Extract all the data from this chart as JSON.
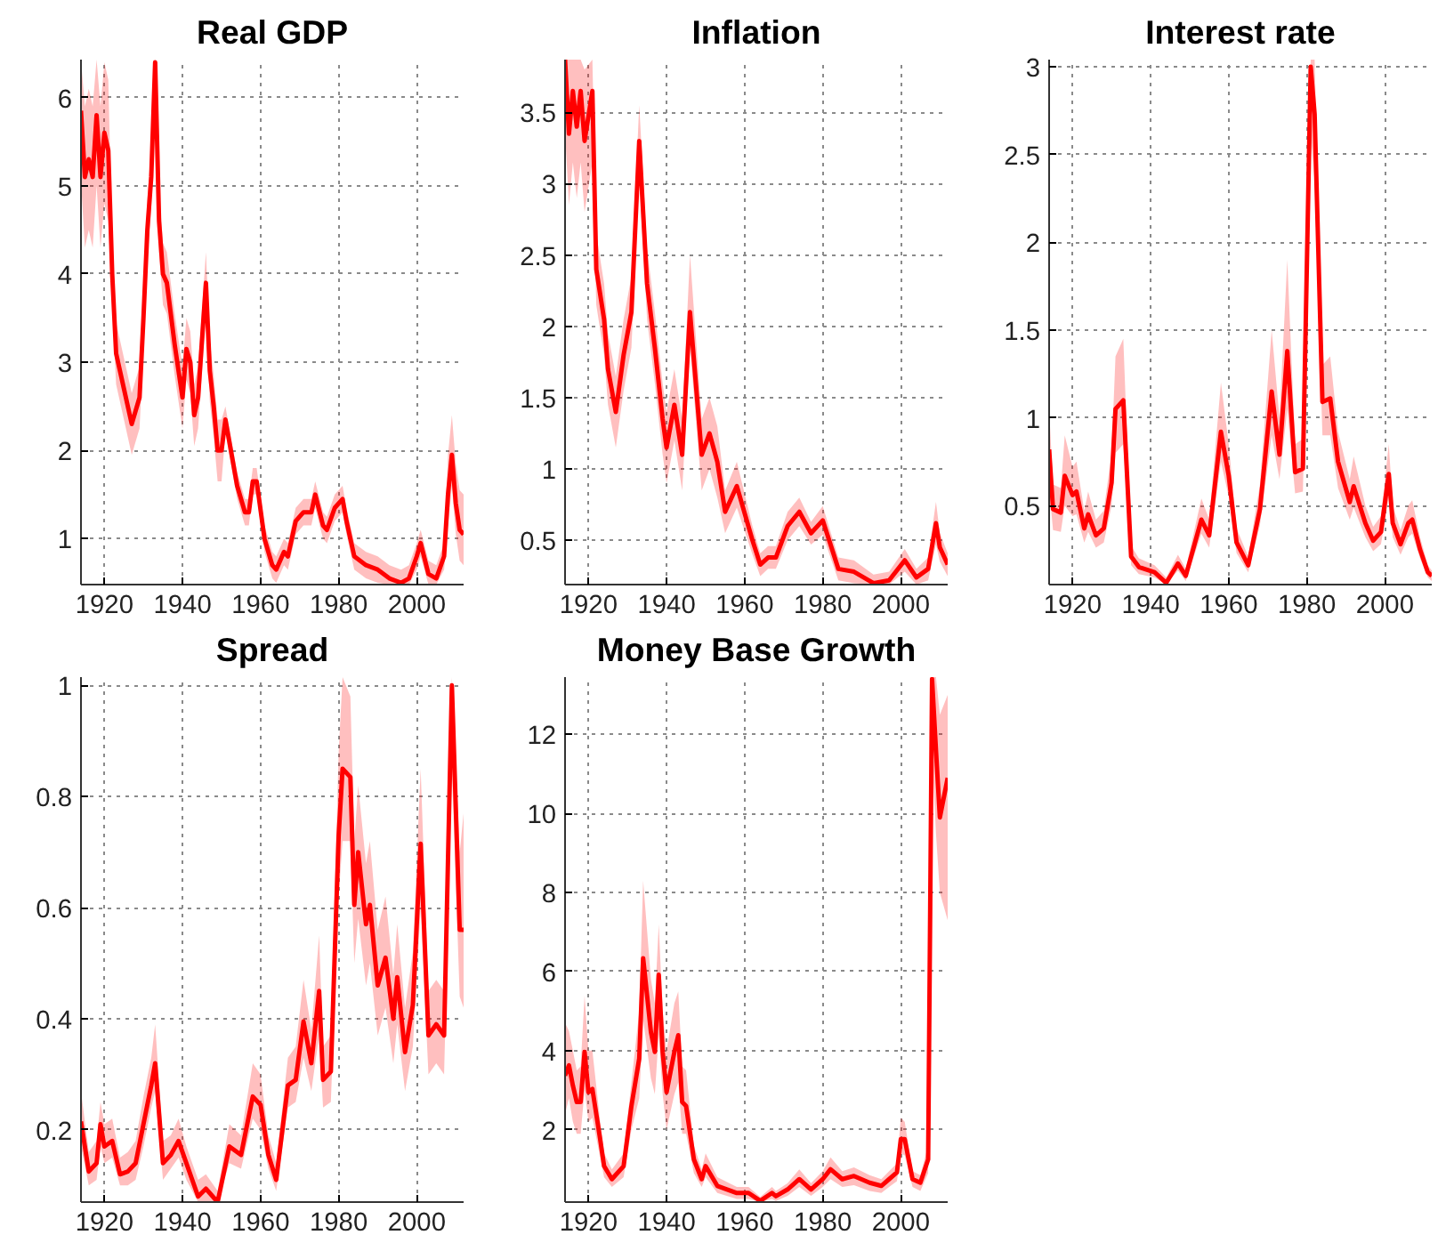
{
  "chart_data": [
    {
      "type": "line",
      "title": "Real GDP",
      "xlim": [
        1914,
        2012
      ],
      "xticks": [
        1920,
        1940,
        1960,
        1980,
        2000
      ],
      "ylim": [
        0.48,
        6.43
      ],
      "yticks": [
        1,
        2,
        3,
        4,
        5,
        6
      ],
      "grid": true,
      "x": [
        1914,
        1915,
        1916,
        1917,
        1918,
        1919,
        1920,
        1921,
        1922,
        1923,
        1925,
        1927,
        1929,
        1930,
        1931,
        1932,
        1933,
        1934,
        1935,
        1936,
        1938,
        1939,
        1940,
        1941,
        1942,
        1943,
        1944,
        1946,
        1947,
        1948,
        1949,
        1950,
        1951,
        1952,
        1954,
        1956,
        1957,
        1958,
        1959,
        1961,
        1963,
        1964,
        1966,
        1967,
        1969,
        1971,
        1973,
        1974,
        1976,
        1977,
        1979,
        1981,
        1982,
        1984,
        1987,
        1990,
        1993,
        1996,
        1998,
        2000,
        2001,
        2003,
        2005,
        2007,
        2008,
        2009,
        2010,
        2011,
        2012
      ],
      "series": [
        {
          "color": "#ff0000",
          "values": [
            5.85,
            5.1,
            5.3,
            5.1,
            5.8,
            5.1,
            5.6,
            5.4,
            4.0,
            3.1,
            2.7,
            2.3,
            2.6,
            3.5,
            4.5,
            5.1,
            6.4,
            4.6,
            4.0,
            3.9,
            3.2,
            2.9,
            2.6,
            3.15,
            3.0,
            2.4,
            2.6,
            3.9,
            2.9,
            2.5,
            2.0,
            2.0,
            2.35,
            2.1,
            1.6,
            1.3,
            1.3,
            1.65,
            1.65,
            1.0,
            0.7,
            0.65,
            0.85,
            0.8,
            1.2,
            1.3,
            1.3,
            1.5,
            1.15,
            1.1,
            1.35,
            1.45,
            1.2,
            0.8,
            0.7,
            0.65,
            0.55,
            0.5,
            0.55,
            0.8,
            0.95,
            0.6,
            0.55,
            0.8,
            1.5,
            1.95,
            1.4,
            1.1,
            1.05
          ],
          "lower": [
            5.05,
            4.3,
            4.5,
            4.3,
            5.0,
            4.3,
            4.8,
            4.6,
            3.65,
            2.75,
            2.35,
            1.95,
            2.25,
            3.15,
            4.15,
            4.75,
            6.05,
            4.25,
            3.65,
            3.55,
            2.85,
            2.55,
            2.25,
            2.8,
            2.65,
            2.05,
            2.25,
            3.55,
            2.55,
            2.15,
            1.65,
            1.65,
            2.2,
            1.95,
            1.45,
            1.15,
            1.15,
            1.5,
            1.5,
            0.85,
            0.55,
            0.5,
            0.7,
            0.65,
            1.05,
            1.15,
            1.15,
            1.35,
            1.0,
            0.95,
            1.2,
            1.3,
            1.05,
            0.65,
            0.55,
            0.5,
            0.48,
            0.48,
            0.48,
            0.65,
            0.8,
            0.48,
            0.48,
            0.65,
            1.15,
            1.6,
            1.05,
            0.75,
            0.7
          ],
          "upper": [
            6.43,
            5.9,
            6.1,
            5.9,
            6.43,
            5.9,
            6.4,
            6.2,
            4.35,
            3.45,
            3.05,
            2.65,
            2.95,
            3.85,
            4.85,
            5.45,
            6.43,
            4.95,
            4.35,
            4.25,
            3.55,
            3.25,
            2.95,
            3.5,
            3.35,
            2.75,
            2.95,
            4.25,
            3.25,
            2.85,
            2.35,
            2.35,
            2.5,
            2.25,
            1.75,
            1.45,
            1.45,
            1.8,
            1.8,
            1.15,
            0.85,
            0.8,
            1.0,
            0.95,
            1.35,
            1.45,
            1.45,
            1.65,
            1.3,
            1.25,
            1.5,
            1.6,
            1.35,
            0.95,
            0.85,
            0.8,
            0.7,
            0.65,
            0.7,
            0.95,
            1.1,
            0.75,
            0.7,
            0.95,
            1.95,
            2.4,
            1.85,
            1.55,
            1.5
          ]
        }
      ]
    },
    {
      "type": "line",
      "title": "Inflation",
      "xlim": [
        1914,
        2012
      ],
      "xticks": [
        1920,
        1940,
        1960,
        1980,
        2000
      ],
      "ylim": [
        0.19,
        3.87
      ],
      "yticks": [
        0.5,
        1,
        1.5,
        2,
        2.5,
        3,
        3.5
      ],
      "grid": true,
      "x": [
        1914,
        1915,
        1916,
        1917,
        1918,
        1919,
        1921,
        1922,
        1924,
        1925,
        1927,
        1929,
        1931,
        1932,
        1933,
        1935,
        1937,
        1939,
        1940,
        1942,
        1944,
        1946,
        1949,
        1951,
        1953,
        1955,
        1958,
        1962,
        1964,
        1966,
        1968,
        1971,
        1974,
        1977,
        1980,
        1984,
        1988,
        1993,
        1997,
        2001,
        2004,
        2007,
        2009,
        2010,
        2012
      ],
      "series": [
        {
          "color": "#ff0000",
          "values": [
            3.87,
            3.35,
            3.65,
            3.4,
            3.65,
            3.3,
            3.65,
            2.4,
            2.05,
            1.7,
            1.4,
            1.8,
            2.1,
            2.7,
            3.3,
            2.3,
            1.85,
            1.35,
            1.15,
            1.45,
            1.1,
            2.1,
            1.1,
            1.25,
            1.05,
            0.7,
            0.88,
            0.5,
            0.33,
            0.38,
            0.38,
            0.6,
            0.7,
            0.55,
            0.64,
            0.3,
            0.28,
            0.2,
            0.22,
            0.36,
            0.24,
            0.3,
            0.62,
            0.45,
            0.33
          ],
          "lower": [
            3.37,
            2.85,
            3.15,
            2.9,
            3.15,
            2.8,
            3.15,
            2.15,
            1.8,
            1.45,
            1.15,
            1.55,
            1.85,
            2.45,
            3.05,
            2.05,
            1.6,
            1.1,
            0.9,
            1.2,
            0.85,
            1.85,
            0.85,
            1.0,
            0.8,
            0.55,
            0.73,
            0.4,
            0.25,
            0.3,
            0.3,
            0.5,
            0.6,
            0.47,
            0.54,
            0.22,
            0.2,
            0.19,
            0.19,
            0.28,
            0.19,
            0.22,
            0.47,
            0.35,
            0.25
          ],
          "upper": [
            3.87,
            3.87,
            3.87,
            3.87,
            3.87,
            3.8,
            3.87,
            2.65,
            2.3,
            1.95,
            1.65,
            2.05,
            2.35,
            2.95,
            3.55,
            2.55,
            2.1,
            1.6,
            1.4,
            1.7,
            1.35,
            2.5,
            1.35,
            1.5,
            1.3,
            0.85,
            1.05,
            0.6,
            0.41,
            0.46,
            0.46,
            0.7,
            0.8,
            0.63,
            0.74,
            0.38,
            0.36,
            0.26,
            0.28,
            0.44,
            0.3,
            0.38,
            0.77,
            0.55,
            0.41
          ]
        }
      ]
    },
    {
      "type": "line",
      "title": "Interest rate",
      "xlim": [
        1914,
        2012
      ],
      "xticks": [
        1920,
        1940,
        1960,
        1980,
        2000
      ],
      "ylim": [
        0.05,
        3.04
      ],
      "yticks": [
        0.5,
        1,
        1.5,
        2,
        2.5,
        3
      ],
      "grid": true,
      "x": [
        1914,
        1915,
        1917,
        1918,
        1920,
        1921,
        1923,
        1924,
        1926,
        1928,
        1930,
        1931,
        1933,
        1935,
        1937,
        1941,
        1944,
        1947,
        1949,
        1953,
        1955,
        1958,
        1960,
        1962,
        1965,
        1968,
        1971,
        1973,
        1975,
        1977,
        1979,
        1981,
        1982,
        1984,
        1986,
        1988,
        1991,
        1992,
        1995,
        1997,
        1999,
        2001,
        2002,
        2004,
        2006,
        2007,
        2009,
        2011,
        2012
      ],
      "series": [
        {
          "color": "#ff0000",
          "values": [
            0.82,
            0.48,
            0.46,
            0.67,
            0.56,
            0.58,
            0.37,
            0.45,
            0.33,
            0.37,
            0.63,
            1.05,
            1.1,
            0.21,
            0.15,
            0.12,
            0.06,
            0.17,
            0.1,
            0.42,
            0.33,
            0.92,
            0.67,
            0.29,
            0.16,
            0.48,
            1.15,
            0.79,
            1.38,
            0.69,
            0.71,
            3.0,
            2.73,
            1.09,
            1.11,
            0.75,
            0.52,
            0.61,
            0.4,
            0.3,
            0.35,
            0.68,
            0.4,
            0.28,
            0.4,
            0.42,
            0.25,
            0.12,
            0.1
          ],
          "lower": [
            0.6,
            0.36,
            0.35,
            0.5,
            0.44,
            0.45,
            0.29,
            0.35,
            0.26,
            0.29,
            0.5,
            0.8,
            0.85,
            0.16,
            0.11,
            0.09,
            0.05,
            0.13,
            0.07,
            0.34,
            0.26,
            0.75,
            0.55,
            0.23,
            0.12,
            0.39,
            0.9,
            0.65,
            1.05,
            0.57,
            0.58,
            2.6,
            2.35,
            0.9,
            0.9,
            0.6,
            0.42,
            0.49,
            0.32,
            0.24,
            0.28,
            0.55,
            0.32,
            0.22,
            0.32,
            0.34,
            0.2,
            0.09,
            0.07
          ],
          "upper": [
            1.05,
            0.62,
            0.6,
            0.9,
            0.72,
            0.75,
            0.47,
            0.58,
            0.42,
            0.47,
            0.8,
            1.35,
            1.45,
            0.27,
            0.2,
            0.16,
            0.09,
            0.22,
            0.14,
            0.54,
            0.42,
            1.2,
            0.85,
            0.37,
            0.21,
            0.62,
            1.5,
            1.0,
            1.9,
            0.85,
            0.88,
            3.04,
            3.04,
            1.3,
            1.35,
            0.92,
            0.65,
            0.78,
            0.5,
            0.38,
            0.44,
            0.85,
            0.5,
            0.36,
            0.5,
            0.53,
            0.32,
            0.16,
            0.13
          ]
        }
      ]
    },
    {
      "type": "line",
      "title": "Spread",
      "xlim": [
        1914,
        2012
      ],
      "xticks": [
        1920,
        1940,
        1960,
        1980,
        2000
      ],
      "ylim": [
        0.07,
        1.015
      ],
      "yticks": [
        0.2,
        0.4,
        0.6,
        0.8,
        1
      ],
      "grid": true,
      "x": [
        1914,
        1916,
        1918,
        1919,
        1920,
        1922,
        1924,
        1926,
        1928,
        1930,
        1932,
        1933,
        1935,
        1937,
        1939,
        1941,
        1944,
        1946,
        1949,
        1952,
        1955,
        1958,
        1960,
        1962,
        1964,
        1967,
        1969,
        1971,
        1973,
        1975,
        1976,
        1978,
        1980,
        1981,
        1983,
        1984,
        1985,
        1987,
        1988,
        1990,
        1992,
        1994,
        1995,
        1997,
        1999,
        2001,
        2003,
        2005,
        2007,
        2009,
        2011,
        2012
      ],
      "series": [
        {
          "color": "#ff0000",
          "values": [
            0.215,
            0.125,
            0.14,
            0.21,
            0.17,
            0.18,
            0.12,
            0.125,
            0.14,
            0.21,
            0.28,
            0.32,
            0.14,
            0.155,
            0.18,
            0.14,
            0.08,
            0.094,
            0.07,
            0.17,
            0.155,
            0.26,
            0.245,
            0.155,
            0.11,
            0.28,
            0.29,
            0.395,
            0.32,
            0.45,
            0.29,
            0.305,
            0.73,
            0.85,
            0.835,
            0.605,
            0.7,
            0.57,
            0.605,
            0.46,
            0.51,
            0.4,
            0.475,
            0.34,
            0.425,
            0.715,
            0.37,
            0.39,
            0.37,
            1.0,
            0.56,
            0.56
          ],
          "lower": [
            0.17,
            0.1,
            0.11,
            0.17,
            0.14,
            0.15,
            0.1,
            0.1,
            0.11,
            0.17,
            0.24,
            0.27,
            0.11,
            0.13,
            0.15,
            0.11,
            0.07,
            0.07,
            0.07,
            0.14,
            0.13,
            0.22,
            0.2,
            0.13,
            0.09,
            0.24,
            0.25,
            0.33,
            0.27,
            0.37,
            0.24,
            0.25,
            0.62,
            0.72,
            0.72,
            0.5,
            0.58,
            0.46,
            0.5,
            0.37,
            0.42,
            0.32,
            0.39,
            0.27,
            0.35,
            0.6,
            0.3,
            0.32,
            0.3,
            0.85,
            0.44,
            0.42
          ],
          "upper": [
            0.27,
            0.16,
            0.18,
            0.25,
            0.21,
            0.22,
            0.15,
            0.16,
            0.18,
            0.26,
            0.33,
            0.39,
            0.18,
            0.19,
            0.22,
            0.17,
            0.11,
            0.12,
            0.09,
            0.21,
            0.19,
            0.32,
            0.3,
            0.19,
            0.14,
            0.33,
            0.35,
            0.47,
            0.38,
            0.55,
            0.35,
            0.37,
            0.88,
            1.015,
            0.98,
            0.72,
            0.82,
            0.68,
            0.72,
            0.56,
            0.62,
            0.48,
            0.57,
            0.42,
            0.52,
            0.85,
            0.45,
            0.47,
            0.45,
            1.015,
            0.7,
            0.77
          ]
        }
      ]
    },
    {
      "type": "line",
      "title": "Money Base Growth",
      "xlim": [
        1914,
        2012
      ],
      "xticks": [
        1920,
        1940,
        1960,
        1980,
        2000
      ],
      "ylim": [
        0.17,
        13.45
      ],
      "yticks": [
        2,
        4,
        6,
        8,
        10,
        12
      ],
      "grid": true,
      "x": [
        1914,
        1915,
        1916,
        1917,
        1918,
        1919,
        1920,
        1921,
        1923,
        1924,
        1926,
        1929,
        1931,
        1933,
        1934,
        1936,
        1937,
        1938,
        1939,
        1940,
        1942,
        1943,
        1944,
        1945,
        1947,
        1949,
        1950,
        1953,
        1958,
        1961,
        1964,
        1967,
        1968,
        1971,
        1974,
        1977,
        1980,
        1982,
        1985,
        1988,
        1992,
        1995,
        1997,
        1999,
        2000,
        2001,
        2003,
        2005,
        2007,
        2008,
        2009,
        2010,
        2012
      ],
      "series": [
        {
          "color": "#ff0000",
          "values": [
            3.37,
            3.63,
            3.12,
            2.7,
            2.7,
            3.97,
            2.95,
            3.03,
            1.76,
            1.08,
            0.75,
            1.08,
            2.6,
            3.8,
            6.34,
            4.47,
            3.97,
            5.92,
            3.97,
            2.95,
            3.97,
            4.39,
            2.7,
            2.6,
            1.25,
            0.75,
            1.08,
            0.58,
            0.4,
            0.4,
            0.2,
            0.4,
            0.32,
            0.49,
            0.75,
            0.49,
            0.75,
            1.0,
            0.75,
            0.83,
            0.66,
            0.58,
            0.75,
            0.92,
            1.76,
            1.76,
            0.75,
            0.66,
            1.25,
            13.4,
            11.6,
            9.9,
            10.9
          ],
          "lower": [
            2.4,
            2.8,
            2.2,
            1.9,
            1.9,
            3.0,
            2.2,
            2.3,
            1.3,
            0.8,
            0.55,
            0.8,
            2.0,
            2.8,
            4.8,
            3.3,
            2.9,
            4.4,
            2.9,
            2.0,
            2.9,
            3.2,
            1.9,
            1.9,
            0.9,
            0.55,
            0.8,
            0.4,
            0.25,
            0.25,
            0.17,
            0.25,
            0.2,
            0.33,
            0.55,
            0.33,
            0.55,
            0.75,
            0.55,
            0.6,
            0.45,
            0.4,
            0.55,
            0.7,
            1.4,
            1.35,
            0.55,
            0.45,
            0.9,
            11.5,
            9.5,
            8.0,
            7.3
          ],
          "upper": [
            4.7,
            4.5,
            4.0,
            3.5,
            3.6,
            5.4,
            4.0,
            4.0,
            2.2,
            1.4,
            1.0,
            1.4,
            3.2,
            5.0,
            8.3,
            5.8,
            5.2,
            7.2,
            5.0,
            4.0,
            5.2,
            5.5,
            3.6,
            3.5,
            1.6,
            1.0,
            1.4,
            0.8,
            0.55,
            0.55,
            0.3,
            0.55,
            0.45,
            0.65,
            1.0,
            0.65,
            0.95,
            1.3,
            0.95,
            1.05,
            0.85,
            0.75,
            0.95,
            1.15,
            2.3,
            2.2,
            0.95,
            0.85,
            1.6,
            13.45,
            13.45,
            12.5,
            13.0
          ]
        }
      ]
    }
  ]
}
